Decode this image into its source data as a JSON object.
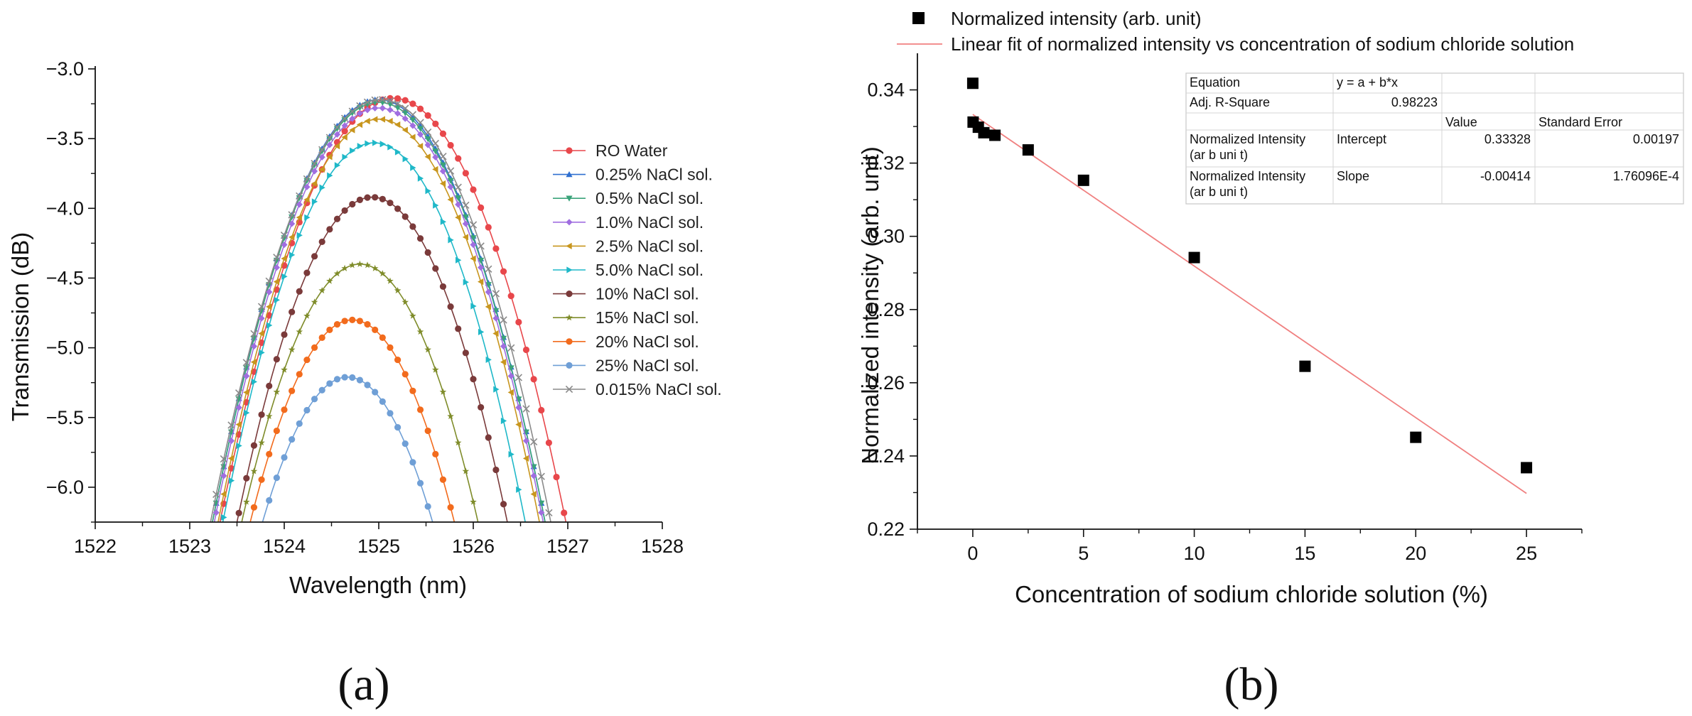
{
  "chart_data": [
    {
      "type": "line",
      "panel": "(a)",
      "xlabel": "Wavelength (nm)",
      "ylabel": "Transmission (dB)",
      "xlim": [
        1522,
        1528
      ],
      "ylim": [
        -6.25,
        -3.0
      ],
      "x_ticks": [
        "1522",
        "1523",
        "1524",
        "1525",
        "1526",
        "1527",
        "1528"
      ],
      "y_ticks": [
        "-3.0",
        "-3.5",
        "-4.0",
        "-4.5",
        "-5.0",
        "-5.5",
        "-6.0"
      ],
      "legend_position": "right",
      "series": [
        {
          "name": "RO Water",
          "color": "#e8474b",
          "marker": "circle",
          "center": 1525.15,
          "peak": -3.21,
          "half_width": 1.83
        },
        {
          "name": "0.25% NaCl sol.",
          "color": "#2f6fd0",
          "marker": "triangle-up",
          "center": 1525.0,
          "peak": -3.22,
          "half_width": 1.76
        },
        {
          "name": "0.5% NaCl sol.",
          "color": "#3aa37a",
          "marker": "triangle-down",
          "center": 1525.0,
          "peak": -3.24,
          "half_width": 1.76
        },
        {
          "name": "1.0% NaCl sol.",
          "color": "#a06ee0",
          "marker": "diamond",
          "center": 1525.0,
          "peak": -3.28,
          "half_width": 1.74
        },
        {
          "name": "2.5% NaCl sol.",
          "color": "#c8961e",
          "marker": "triangle-left",
          "center": 1525.0,
          "peak": -3.36,
          "half_width": 1.7
        },
        {
          "name": "5.0% NaCl sol.",
          "color": "#1fb8c8",
          "marker": "triangle-right",
          "center": 1524.95,
          "peak": -3.53,
          "half_width": 1.6
        },
        {
          "name": "10% NaCl sol.",
          "color": "#7a3a3a",
          "marker": "circle",
          "center": 1524.93,
          "peak": -3.92,
          "half_width": 1.43
        },
        {
          "name": "15% NaCl sol.",
          "color": "#7f8c2a",
          "marker": "star",
          "center": 1524.8,
          "peak": -4.4,
          "half_width": 1.25
        },
        {
          "name": "20% NaCl sol.",
          "color": "#f26b1d",
          "marker": "circle",
          "center": 1524.72,
          "peak": -4.8,
          "half_width": 1.08
        },
        {
          "name": "25% NaCl sol.",
          "color": "#6f9fd6",
          "marker": "circle",
          "center": 1524.67,
          "peak": -5.21,
          "half_width": 0.9
        },
        {
          "name": "0.015% NaCl sol.",
          "color": "#8a8a8a",
          "marker": "x",
          "center": 1525.02,
          "peak": -3.22,
          "half_width": 1.8
        }
      ]
    },
    {
      "type": "scatter",
      "panel": "(b)",
      "xlabel": "Concentration of sodium chloride solution (%)",
      "ylabel": "Normalized intensity (arb. unit)",
      "xlim": [
        -2.5,
        27.5
      ],
      "ylim": [
        0.22,
        0.35
      ],
      "x_ticks": [
        "0",
        "5",
        "10",
        "15",
        "20",
        "25"
      ],
      "y_ticks": [
        "0.22",
        "0.24",
        "0.26",
        "0.28",
        "0.30",
        "0.32",
        "0.34"
      ],
      "legend_position": "top",
      "series": [
        {
          "name": "Normalized intensity (arb. unit)",
          "color": "#000000",
          "x": [
            0,
            0.015,
            0.25,
            0.5,
            1.0,
            2.5,
            5.0,
            10,
            15,
            20,
            25
          ],
          "y": [
            0.3418,
            0.3312,
            0.3298,
            0.3283,
            0.3276,
            0.3236,
            0.3153,
            0.2942,
            0.2645,
            0.2451,
            0.2368
          ]
        }
      ],
      "fit": {
        "name": "Linear fit of normalized intensity vs concentration of sodium chloride solution",
        "color": "#f08080",
        "intercept": 0.33328,
        "slope": -0.00414,
        "x_range": [
          0,
          25
        ]
      },
      "fit_table": {
        "rows": [
          [
            "Equation",
            "y = a + b*x",
            "",
            ""
          ],
          [
            "Adj. R-Square",
            "0.98223",
            "",
            ""
          ],
          [
            "",
            "",
            "Value",
            "Standard Error"
          ],
          [
            "Normalized Intensity\n(ar b  uni t)",
            "Intercept",
            "0.33328",
            "0.00197"
          ],
          [
            "Normalized Intensity\n(ar b  uni t)",
            "Slope",
            "-0.00414",
            "1.76096E-4"
          ]
        ]
      }
    }
  ]
}
